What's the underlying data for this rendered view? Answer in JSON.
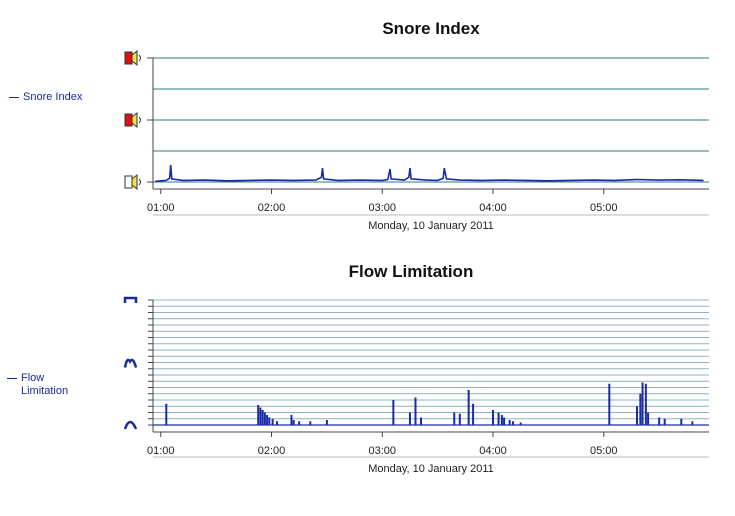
{
  "colors": {
    "series": "#1a2aa8",
    "grid_top": "#2e7d7d",
    "grid_bottom": "#8fb3c4",
    "axis": "#444444"
  },
  "chart_data": [
    {
      "type": "line",
      "title": "Snore Index",
      "legend": [
        "Snore Index"
      ],
      "xlabel": "Monday, 10 January 2011",
      "x_ticks": [
        "01:00",
        "02:00",
        "03:00",
        "04:00",
        "05:00"
      ],
      "xlim_hours": [
        0.93,
        5.95
      ],
      "y_icons": [
        "speaker-loud-icon",
        "speaker-medium-icon",
        "speaker-quiet-icon"
      ],
      "ylim": [
        0,
        4
      ],
      "grid": true,
      "series": [
        {
          "values": [
            [
              0.95,
              0.02
            ],
            [
              1.0,
              0.04
            ],
            [
              1.05,
              0.05
            ],
            [
              1.08,
              0.12
            ],
            [
              1.09,
              0.55
            ],
            [
              1.1,
              0.1
            ],
            [
              1.2,
              0.05
            ],
            [
              1.4,
              0.06
            ],
            [
              1.6,
              0.04
            ],
            [
              1.8,
              0.05
            ],
            [
              2.0,
              0.06
            ],
            [
              2.2,
              0.05
            ],
            [
              2.4,
              0.06
            ],
            [
              2.45,
              0.15
            ],
            [
              2.46,
              0.45
            ],
            [
              2.47,
              0.1
            ],
            [
              2.6,
              0.05
            ],
            [
              2.8,
              0.06
            ],
            [
              3.0,
              0.05
            ],
            [
              3.05,
              0.08
            ],
            [
              3.07,
              0.42
            ],
            [
              3.08,
              0.1
            ],
            [
              3.2,
              0.06
            ],
            [
              3.24,
              0.15
            ],
            [
              3.25,
              0.45
            ],
            [
              3.26,
              0.1
            ],
            [
              3.4,
              0.06
            ],
            [
              3.5,
              0.05
            ],
            [
              3.55,
              0.12
            ],
            [
              3.56,
              0.45
            ],
            [
              3.58,
              0.1
            ],
            [
              3.7,
              0.06
            ],
            [
              3.9,
              0.05
            ],
            [
              4.1,
              0.06
            ],
            [
              4.3,
              0.05
            ],
            [
              4.5,
              0.04
            ],
            [
              4.7,
              0.05
            ],
            [
              4.9,
              0.06
            ],
            [
              5.1,
              0.05
            ],
            [
              5.3,
              0.08
            ],
            [
              5.5,
              0.06
            ],
            [
              5.7,
              0.07
            ],
            [
              5.9,
              0.05
            ]
          ]
        }
      ]
    },
    {
      "type": "bar",
      "title": "Flow Limitation",
      "legend": [
        "Flow",
        "Limitation"
      ],
      "xlabel": "Monday, 10 January 2011",
      "x_ticks": [
        "01:00",
        "02:00",
        "03:00",
        "04:00",
        "05:00"
      ],
      "xlim_hours": [
        0.93,
        5.95
      ],
      "y_icons": [
        "flow-flat-icon",
        "flow-partial-icon",
        "flow-normal-icon"
      ],
      "ylim": [
        0,
        1
      ],
      "grid": true,
      "bars": [
        [
          1.05,
          0.17
        ],
        [
          1.88,
          0.16
        ],
        [
          1.9,
          0.14
        ],
        [
          1.92,
          0.12
        ],
        [
          1.94,
          0.1
        ],
        [
          1.96,
          0.08
        ],
        [
          1.98,
          0.06
        ],
        [
          2.01,
          0.05
        ],
        [
          2.05,
          0.03
        ],
        [
          2.18,
          0.08
        ],
        [
          2.2,
          0.04
        ],
        [
          2.25,
          0.03
        ],
        [
          2.35,
          0.03
        ],
        [
          2.5,
          0.04
        ],
        [
          3.1,
          0.2
        ],
        [
          3.25,
          0.1
        ],
        [
          3.3,
          0.22
        ],
        [
          3.35,
          0.06
        ],
        [
          3.65,
          0.1
        ],
        [
          3.7,
          0.09
        ],
        [
          3.78,
          0.28
        ],
        [
          3.82,
          0.17
        ],
        [
          4.0,
          0.12
        ],
        [
          4.05,
          0.1
        ],
        [
          4.08,
          0.08
        ],
        [
          4.1,
          0.06
        ],
        [
          4.15,
          0.04
        ],
        [
          4.18,
          0.03
        ],
        [
          4.25,
          0.02
        ],
        [
          5.05,
          0.33
        ],
        [
          5.3,
          0.15
        ],
        [
          5.33,
          0.25
        ],
        [
          5.35,
          0.34
        ],
        [
          5.38,
          0.33
        ],
        [
          5.4,
          0.1
        ],
        [
          5.5,
          0.06
        ],
        [
          5.55,
          0.05
        ],
        [
          5.7,
          0.05
        ],
        [
          5.8,
          0.03
        ]
      ]
    }
  ]
}
